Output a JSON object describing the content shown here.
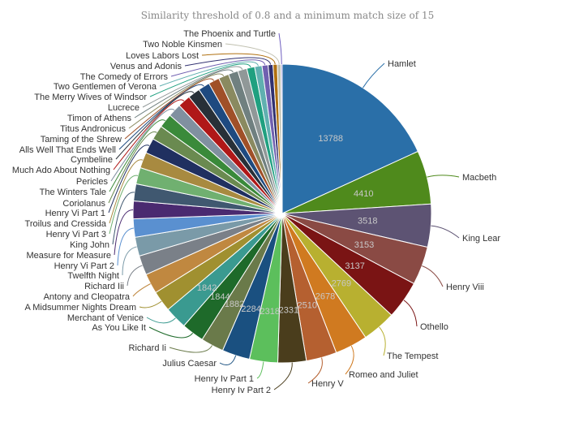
{
  "chart_data": {
    "type": "pie",
    "title": "Similarity threshold of 0.8 and a minimum match size of 15",
    "start": "top, clockwise",
    "slices": [
      {
        "label": "Hamlet",
        "value": 13788,
        "color": "#2a6fa8",
        "shown": true
      },
      {
        "label": "Macbeth",
        "value": 4410,
        "color": "#4f8a1c",
        "shown": true
      },
      {
        "label": "King Lear",
        "value": 3518,
        "color": "#5d5373",
        "shown": true
      },
      {
        "label": "Henry Viii",
        "value": 3153,
        "color": "#8a4a44",
        "shown": true
      },
      {
        "label": "Othello",
        "value": 3137,
        "color": "#7a1414",
        "shown": true
      },
      {
        "label": "The Tempest",
        "value": 2769,
        "color": "#b8b030",
        "shown": true
      },
      {
        "label": "Romeo and Juliet",
        "value": 2678,
        "color": "#d07a20",
        "shown": true
      },
      {
        "label": "Henry V",
        "value": 2510,
        "color": "#b56030",
        "shown": true
      },
      {
        "label": "Henry Iv Part 2",
        "value": 2331,
        "color": "#4a3d1c",
        "shown": true
      },
      {
        "label": "Henry Iv Part 1",
        "value": 2318,
        "color": "#5cbf5c",
        "shown": true
      },
      {
        "label": "Julius Caesar",
        "value": 2284,
        "color": "#1a5080",
        "shown": true
      },
      {
        "label": "Richard Ii",
        "value": 1882,
        "color": "#6a7a4a",
        "shown": true
      },
      {
        "label": "As You Like It",
        "value": 1844,
        "color": "#1e6a2a",
        "shown": true
      },
      {
        "label": "Merchant of Venice",
        "value": 1842,
        "color": "#3a9a90",
        "shown": true
      },
      {
        "label": "A Midsummer Nights Dream",
        "value": 1700,
        "color": "#a09030",
        "shown": false
      },
      {
        "label": "Antony and Cleopatra",
        "value": 1650,
        "color": "#c08840",
        "shown": false
      },
      {
        "label": "Richard Iii",
        "value": 1600,
        "color": "#7a8088",
        "shown": false
      },
      {
        "label": "Twelfth Night",
        "value": 1550,
        "color": "#7a9aa8",
        "shown": false
      },
      {
        "label": "Henry Vi Part 2",
        "value": 1500,
        "color": "#5a90d0",
        "shown": false
      },
      {
        "label": "Measure for Measure",
        "value": 1450,
        "color": "#4a2a70",
        "shown": false
      },
      {
        "label": "King John",
        "value": 1400,
        "color": "#405870",
        "shown": false
      },
      {
        "label": "Henry Vi Part 3",
        "value": 1350,
        "color": "#70b070",
        "shown": false
      },
      {
        "label": "Troilus and Cressida",
        "value": 1300,
        "color": "#a88a40",
        "shown": false
      },
      {
        "label": "Henry Vi Part 1",
        "value": 1250,
        "color": "#203060",
        "shown": false
      },
      {
        "label": "Coriolanus",
        "value": 1200,
        "color": "#6a8a50",
        "shown": false
      },
      {
        "label": "The Winters Tale",
        "value": 1150,
        "color": "#3a8a3a",
        "shown": false
      },
      {
        "label": "Pericles",
        "value": 1100,
        "color": "#8090a0",
        "shown": false
      },
      {
        "label": "Much Ado About Nothing",
        "value": 1050,
        "color": "#b01818",
        "shown": false
      },
      {
        "label": "Cymbeline",
        "value": 1000,
        "color": "#283038",
        "shown": false
      },
      {
        "label": "Alls Well That Ends Well",
        "value": 950,
        "color": "#1e4a80",
        "shown": false
      },
      {
        "label": "Taming of the Shrew",
        "value": 900,
        "color": "#a05028",
        "shown": false
      },
      {
        "label": "Titus Andronicus",
        "value": 850,
        "color": "#8a8a60",
        "shown": false
      },
      {
        "label": "Timon of Athens",
        "value": 800,
        "color": "#708080",
        "shown": false
      },
      {
        "label": "Lucrece",
        "value": 750,
        "color": "#909898",
        "shown": false
      },
      {
        "label": "The Merry Wives of Windsor",
        "value": 650,
        "color": "#20a080",
        "shown": false
      },
      {
        "label": "Two Gentlemen of Verona",
        "value": 600,
        "color": "#60b0b0",
        "shown": false
      },
      {
        "label": "The Comedy of Errors",
        "value": 500,
        "color": "#7060b0",
        "shown": false
      },
      {
        "label": "Venus and Adonis",
        "value": 400,
        "color": "#303070",
        "shown": false
      },
      {
        "label": "Loves Labors Lost",
        "value": 350,
        "color": "#b07010",
        "shown": false
      },
      {
        "label": "Two Noble Kinsmen",
        "value": 300,
        "color": "#c0c0b0",
        "shown": false
      },
      {
        "label": "The Phoenix and Turtle",
        "value": 100,
        "color": "#7060c0",
        "shown": false
      }
    ]
  }
}
